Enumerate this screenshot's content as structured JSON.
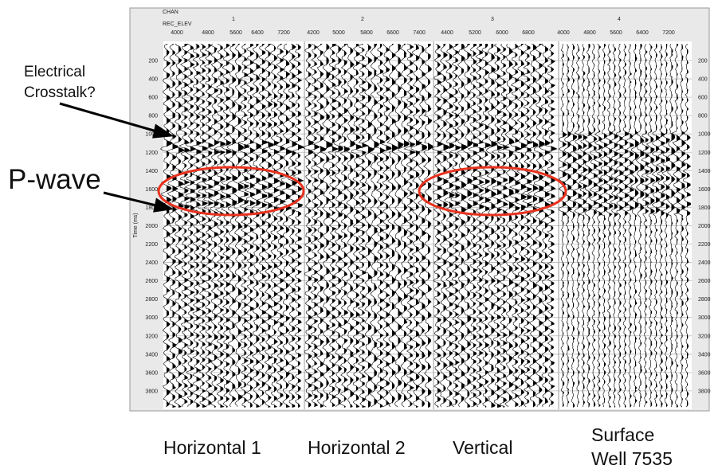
{
  "header": {
    "row1": "CHAN",
    "row2": "REC_ELEV"
  },
  "panels": [
    {
      "channel": "1",
      "elev_ticks": [
        "4000",
        "4800",
        "5600",
        "6400",
        "7200"
      ],
      "caption": "Horizontal 1"
    },
    {
      "channel": "2",
      "elev_ticks": [
        "4200",
        "5000",
        "5800",
        "6600",
        "7400"
      ],
      "caption": "Horizontal 2"
    },
    {
      "channel": "3",
      "elev_ticks": [
        "4400",
        "5200",
        "6000",
        "6800"
      ],
      "caption": "Vertical"
    },
    {
      "channel": "4",
      "elev_ticks": [
        "4000",
        "4800",
        "5600",
        "6400",
        "7200"
      ],
      "caption": "Surface"
    }
  ],
  "caption_extra": "Well 7535",
  "y_axis_label": "Time (ms)",
  "time_ticks": [
    "200",
    "400",
    "600",
    "800",
    "1000",
    "1200",
    "1400",
    "1600",
    "1800",
    "2000",
    "2200",
    "2400",
    "2600",
    "2800",
    "3000",
    "3200",
    "3400",
    "3600",
    "3800"
  ],
  "annotations": {
    "crosstalk_line1": "Electrical",
    "crosstalk_line2": "Crosstalk?",
    "pwave": "P-wave"
  }
}
